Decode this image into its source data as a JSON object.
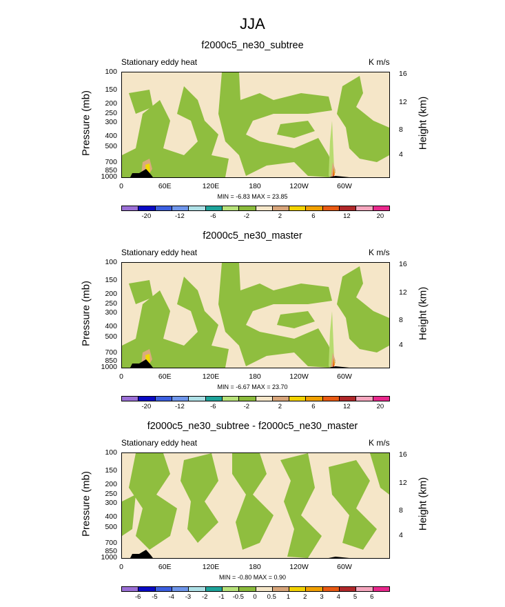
{
  "main_title": "JJA",
  "colors": {
    "bg": "#f5e6c8",
    "green": "#8fbe3f",
    "light_green": "#b7db6f",
    "dark": "#000000",
    "orange": "#f28a00",
    "red": "#d93a1a",
    "tan": "#d9ab7d",
    "yellow": "#f2d900"
  },
  "colorbar_colors": [
    "#9b6fd6",
    "#0a0ac4",
    "#3c5fe0",
    "#6f96ea",
    "#aee0e6",
    "#1ea39a",
    "#b7e27a",
    "#8bbb3c",
    "#f5e6c8",
    "#d8a57a",
    "#f2d200",
    "#f0a000",
    "#e85a14",
    "#b0282a",
    "#f5a6be",
    "#e8288c"
  ],
  "panels": [
    {
      "title": "f2000c5_ne30_subtree",
      "var_label": "Stationary eddy heat",
      "unit_label": "K m/s",
      "minmax": "MIN = -6.83  MAX = 23.85",
      "cbar_labels": [
        "-20",
        "-12",
        "-6",
        "-2",
        "2",
        "6",
        "12",
        "20"
      ]
    },
    {
      "title": "f2000c5_ne30_master",
      "var_label": "Stationary eddy heat",
      "unit_label": "K m/s",
      "minmax": "MIN = -6.67  MAX = 23.70",
      "cbar_labels": [
        "-20",
        "-12",
        "-6",
        "-2",
        "2",
        "6",
        "12",
        "20"
      ]
    },
    {
      "title": "f2000c5_ne30_subtree - f2000c5_ne30_master",
      "var_label": "Stationary eddy heat",
      "unit_label": "K m/s",
      "minmax": "MIN = -0.80  MAX = 0.90",
      "cbar_labels": [
        "-6",
        "-5",
        "-4",
        "-3",
        "-2",
        "-1",
        "-0.5",
        "0",
        "0.5",
        "1",
        "2",
        "3",
        "4",
        "5",
        "6"
      ]
    }
  ],
  "axes": {
    "y_title": "Pressure (mb)",
    "y_right_title": "Height (km)",
    "y_ticks": [
      "100",
      "150",
      "200",
      "250",
      "300",
      "400",
      "500",
      "700",
      "850",
      "1000"
    ],
    "y_right_ticks": [
      "16",
      "12",
      "8",
      "4"
    ],
    "x_ticks": [
      "0",
      "60E",
      "120E",
      "180",
      "120W",
      "60W"
    ]
  },
  "chart_data": [
    {
      "type": "heatmap",
      "title": "f2000c5_ne30_subtree",
      "xlabel": "",
      "ylabel": "Pressure (mb)",
      "y2label": "Height (km)",
      "x_ticks": [
        "0",
        "60E",
        "120E",
        "180",
        "120W",
        "60W"
      ],
      "y_ticks": [
        100,
        150,
        200,
        250,
        300,
        400,
        500,
        700,
        850,
        1000
      ],
      "y2_ticks": [
        16,
        12,
        8,
        4
      ],
      "ylim": [
        1000,
        100
      ],
      "units": "K m/s",
      "min": -6.83,
      "max": 23.85,
      "contour_levels": [
        -20,
        -16,
        -12,
        -8,
        -6,
        -4,
        -2,
        -1,
        1,
        2,
        4,
        6,
        8,
        12,
        16,
        20
      ]
    },
    {
      "type": "heatmap",
      "title": "f2000c5_ne30_master",
      "ylabel": "Pressure (mb)",
      "y2label": "Height (km)",
      "ylim": [
        1000,
        100
      ],
      "units": "K m/s",
      "min": -6.67,
      "max": 23.7,
      "contour_levels": [
        -20,
        -16,
        -12,
        -8,
        -6,
        -4,
        -2,
        -1,
        1,
        2,
        4,
        6,
        8,
        12,
        16,
        20
      ]
    },
    {
      "type": "heatmap",
      "title": "f2000c5_ne30_subtree - f2000c5_ne30_master",
      "ylabel": "Pressure (mb)",
      "y2label": "Height (km)",
      "ylim": [
        1000,
        100
      ],
      "units": "K m/s",
      "min": -0.8,
      "max": 0.9,
      "contour_levels": [
        -6,
        -5,
        -4,
        -3,
        -2,
        -1,
        -0.5,
        0,
        0.5,
        1,
        2,
        3,
        4,
        5,
        6
      ]
    }
  ]
}
